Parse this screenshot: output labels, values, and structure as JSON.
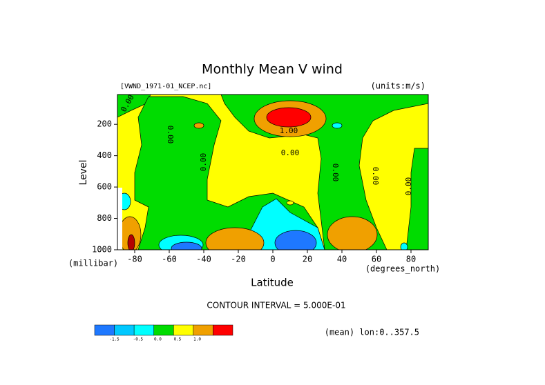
{
  "chart_data": {
    "type": "contour",
    "title": "Monthly Mean V wind",
    "file_label": "[VWND_1971-01_NCEP.nc]",
    "units_label": "(units:m/s)",
    "x_label": "Latitude",
    "x_unit": "(degrees_north)",
    "y_label": "Level",
    "y_unit": "(millibar)",
    "xlim": [
      -90,
      90
    ],
    "xticks": [
      -80,
      -60,
      -40,
      -20,
      0,
      20,
      40,
      60,
      80
    ],
    "ylim": [
      1000,
      10
    ],
    "yticks": [
      200,
      400,
      600,
      800,
      1000
    ],
    "contour_labels": [
      "0.00",
      "0.00",
      "0.00",
      "1.00",
      "0.00",
      "0.00",
      "0.00",
      "0.00"
    ],
    "contour_interval": "CONTOUR INTERVAL = 5.000E-01",
    "footnote": "(mean) lon:0..357.5",
    "colorbar": {
      "colors": [
        "#1e78ff",
        "#00c8ff",
        "#00ffff",
        "#00dc00",
        "#ffff00",
        "#f0a000",
        "#ff0000"
      ],
      "labels": [
        "-1.5",
        "-0.5",
        "0.0",
        "0.5",
        "1.0"
      ]
    }
  }
}
